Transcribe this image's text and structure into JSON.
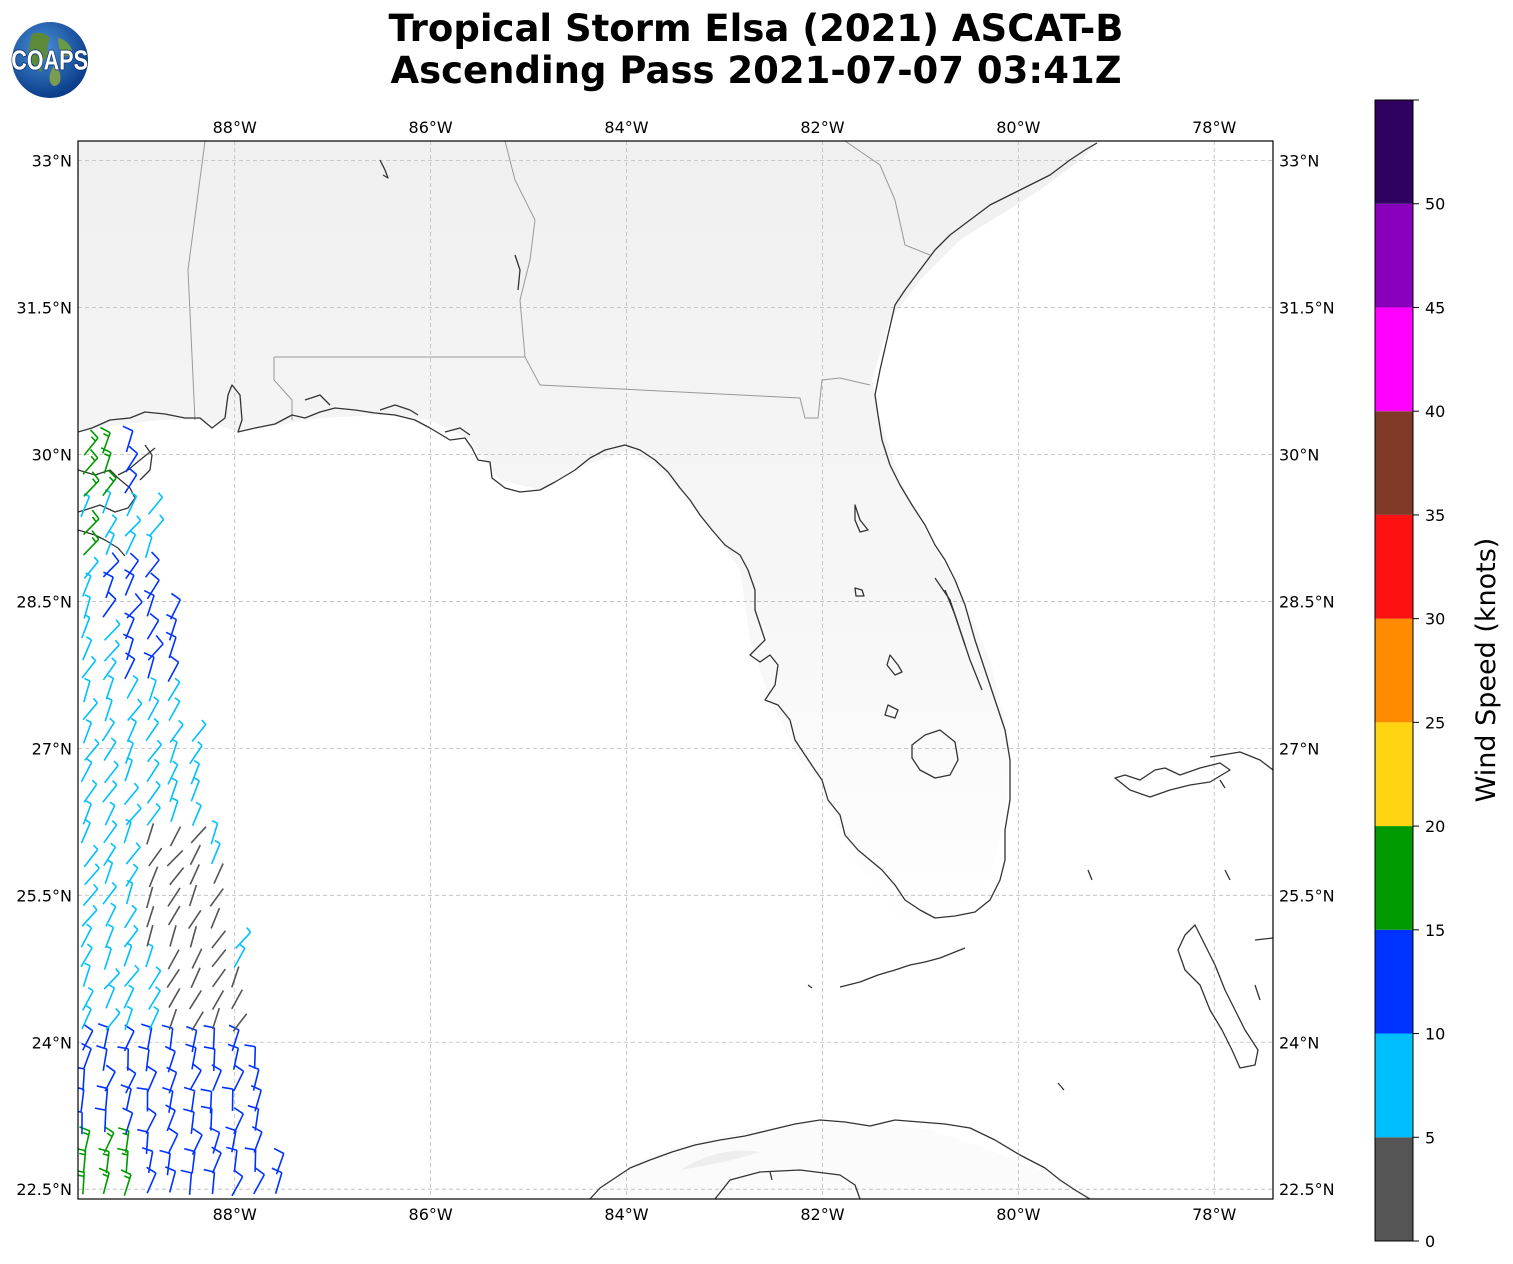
{
  "title": {
    "line1": "Tropical Storm Elsa (2021) ASCAT-B",
    "line2": "Ascending Pass 2021-07-07 03:41Z"
  },
  "logo": {
    "text": "COAPS",
    "icon": "globe-icon"
  },
  "map": {
    "projection": "plate-carree",
    "lon_range": [
      -89.6,
      -77.4
    ],
    "lat_range": [
      22.4,
      33.2
    ],
    "grid": true,
    "lon_ticks": [
      {
        "value": -88,
        "label": "88°W"
      },
      {
        "value": -86,
        "label": "86°W"
      },
      {
        "value": -84,
        "label": "84°W"
      },
      {
        "value": -82,
        "label": "82°W"
      },
      {
        "value": -80,
        "label": "80°W"
      },
      {
        "value": -78,
        "label": "78°W"
      }
    ],
    "lat_ticks": [
      {
        "value": 33,
        "label": "33°N"
      },
      {
        "value": 31.5,
        "label": "31.5°N"
      },
      {
        "value": 30,
        "label": "30°N"
      },
      {
        "value": 28.5,
        "label": "28.5°N"
      },
      {
        "value": 27,
        "label": "27°N"
      },
      {
        "value": 25.5,
        "label": "25.5°N"
      },
      {
        "value": 24,
        "label": "24°N"
      },
      {
        "value": 22.5,
        "label": "22.5°N"
      }
    ],
    "coast_color": "#333333",
    "border_color": "#999999"
  },
  "colorbar": {
    "label": "Wind Speed (knots)",
    "bins": [
      {
        "min": 0,
        "max": 5,
        "color": "#555555"
      },
      {
        "min": 5,
        "max": 10,
        "color": "#00bfff"
      },
      {
        "min": 10,
        "max": 15,
        "color": "#0033ff"
      },
      {
        "min": 15,
        "max": 20,
        "color": "#009900"
      },
      {
        "min": 20,
        "max": 25,
        "color": "#ffd511"
      },
      {
        "min": 25,
        "max": 30,
        "color": "#ff8c00"
      },
      {
        "min": 30,
        "max": 35,
        "color": "#ff1111"
      },
      {
        "min": 35,
        "max": 40,
        "color": "#823a28"
      },
      {
        "min": 40,
        "max": 45,
        "color": "#ff00ff"
      },
      {
        "min": 45,
        "max": 50,
        "color": "#8800bb"
      },
      {
        "min": 50,
        "max": 55,
        "color": "#2e0060"
      }
    ],
    "tick_labels": [
      "0",
      "5",
      "10",
      "15",
      "20",
      "25",
      "30",
      "35",
      "40",
      "45",
      "50"
    ]
  },
  "swath": {
    "lon_min": -89.6,
    "lon_max_at_south": -87.5,
    "lon_max_at_north": -89.0,
    "lat_min": 22.45,
    "lat_max": 30.05,
    "lat_step": 0.21,
    "lon_step": 0.22
  }
}
